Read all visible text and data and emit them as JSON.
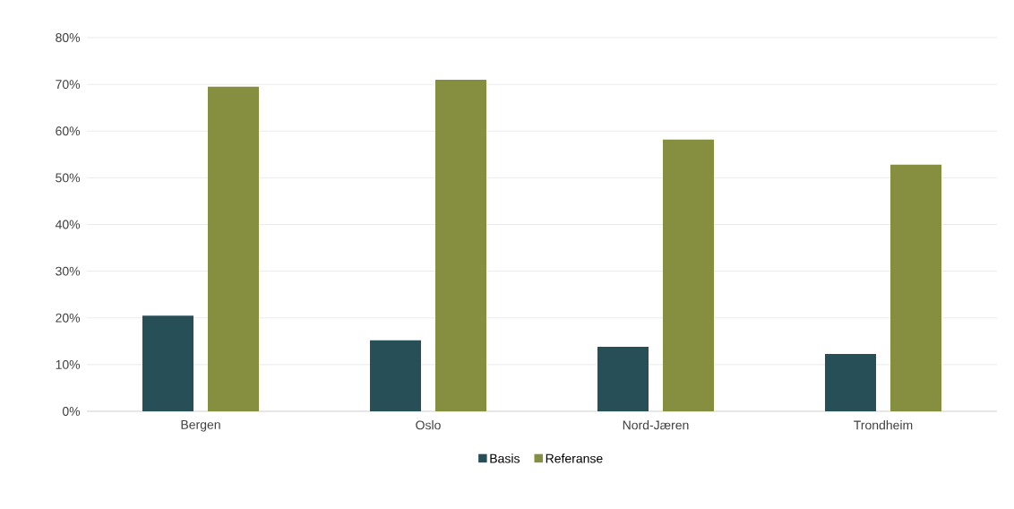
{
  "chart_data": {
    "type": "bar",
    "categories": [
      "Bergen",
      "Oslo",
      "Nord-Jæren",
      "Trondheim"
    ],
    "series": [
      {
        "name": "Basis",
        "color": "#264f57",
        "values": [
          20.5,
          15.2,
          13.8,
          12.3
        ]
      },
      {
        "name": "Referanse",
        "color": "#868e3f",
        "values": [
          69.5,
          71.0,
          58.2,
          52.8
        ]
      }
    ],
    "ylim": [
      0,
      80
    ],
    "yticks": [
      {
        "value": 0,
        "label": "0%"
      },
      {
        "value": 10,
        "label": "10%"
      },
      {
        "value": 20,
        "label": "20%"
      },
      {
        "value": 30,
        "label": "30%"
      },
      {
        "value": 40,
        "label": "40%"
      },
      {
        "value": 50,
        "label": "50%"
      },
      {
        "value": 60,
        "label": "60%"
      },
      {
        "value": 70,
        "label": "70%"
      },
      {
        "value": 80,
        "label": "80%"
      }
    ],
    "grid": "y",
    "legend": "bottom"
  }
}
